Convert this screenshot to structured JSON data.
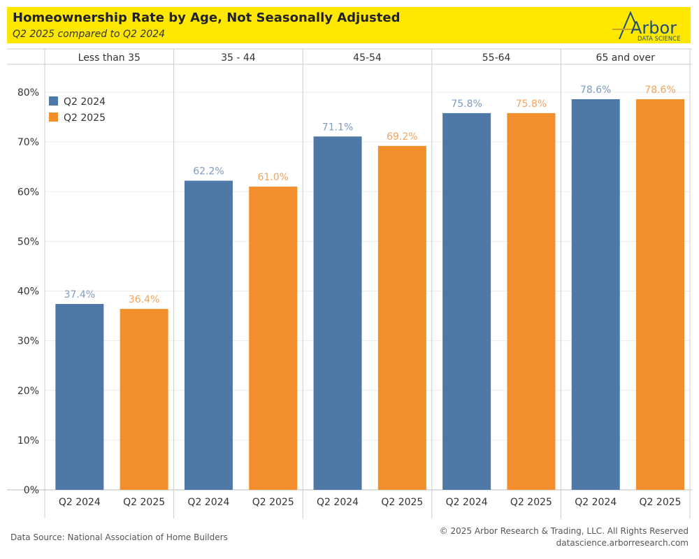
{
  "header": {
    "title": "Homeownership Rate by Age, Not Seasonally Adjusted",
    "subtitle": "Q2 2025 compared to Q2 2024",
    "logo_text": "Arbor",
    "logo_subtext": "DATA SCIENCE"
  },
  "footer": {
    "source": "Data Source: National Association of Home Builders",
    "copyright": "© 2025 Arbor Research & Trading, LLC. All Rights Reserved",
    "website": "datascience.arborresearch.com"
  },
  "colors": {
    "header_bg": "#ffe800",
    "q2_2024": "#4e79a7",
    "q2_2025": "#f28e2b",
    "logo": "#1f4e79",
    "logo_accent": "#c9a227"
  },
  "chart_data": {
    "type": "bar",
    "title": "Homeownership Rate by Age, Not Seasonally Adjusted",
    "subtitle": "Q2 2025 compared to Q2 2024",
    "xlabel": "",
    "ylabel": "",
    "categories": [
      "Less than 35",
      "35 - 44",
      "45-54",
      "55-64",
      "65 and over"
    ],
    "bar_labels": [
      "Q2 2024",
      "Q2 2025"
    ],
    "series": [
      {
        "name": "Q2 2024",
        "values": [
          37.4,
          62.2,
          71.1,
          75.8,
          78.6
        ],
        "labels": [
          "37.4%",
          "62.2%",
          "71.1%",
          "75.8%",
          "78.6%"
        ]
      },
      {
        "name": "Q2 2025",
        "values": [
          36.4,
          61.0,
          69.2,
          75.8,
          78.6
        ],
        "labels": [
          "36.4%",
          "61.0%",
          "69.2%",
          "75.8%",
          "78.6%"
        ]
      }
    ],
    "ylim": [
      0,
      80
    ],
    "yticks": [
      0,
      10,
      20,
      30,
      40,
      50,
      60,
      70,
      80
    ],
    "ytick_labels": [
      "0%",
      "10%",
      "20%",
      "30%",
      "40%",
      "50%",
      "60%",
      "70%",
      "80%"
    ],
    "grid": true,
    "legend_position": "top-left"
  }
}
